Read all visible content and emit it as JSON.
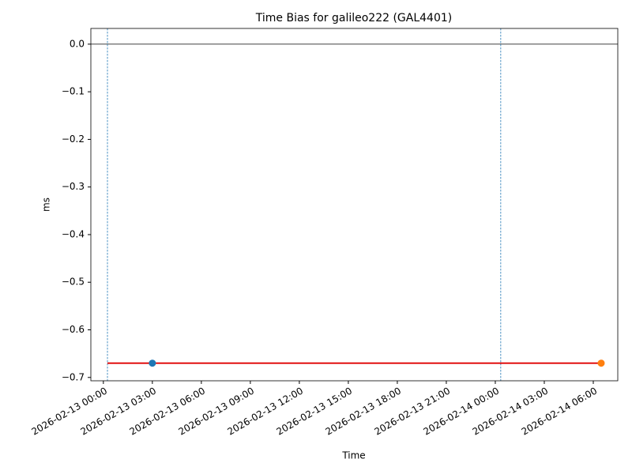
{
  "chart_data": {
    "type": "line",
    "title": "Time Bias for galileo222 (GAL4401)",
    "x_label": "Time",
    "y_label": "ms",
    "series": [
      {
        "color": "#e00000",
        "mode": "lines",
        "x": [
          "2026-02-13 00:15",
          "2026-02-14 06:29"
        ],
        "values": [
          -0.67,
          -0.67
        ]
      },
      {
        "color": "#1f77b4",
        "mode": "markers",
        "x": [
          "2026-02-13 03:00"
        ],
        "values": [
          -0.67
        ]
      },
      {
        "color": "#ff7f0e",
        "mode": "markers",
        "x": [
          "2026-02-14 06:29"
        ],
        "values": [
          -0.67
        ]
      }
    ],
    "vlines": {
      "x": [
        "2026-02-13 00:15",
        "2026-02-14 00:20"
      ],
      "color": "#1f77b4"
    },
    "hline": {
      "y": 0,
      "color": "#000000"
    },
    "xlim": [
      "2026-02-12 23:14",
      "2026-02-14 07:30"
    ],
    "xticks": [
      "2026-02-13 00:00",
      "2026-02-13 03:00",
      "2026-02-13 06:00",
      "2026-02-13 09:00",
      "2026-02-13 12:00",
      "2026-02-13 15:00",
      "2026-02-13 18:00",
      "2026-02-13 21:00",
      "2026-02-14 00:00",
      "2026-02-14 03:00",
      "2026-02-14 06:00"
    ],
    "ylim": [
      -0.707,
      0.033
    ],
    "yticks": [
      {
        "value": 0,
        "label": "0.0"
      },
      {
        "value": -0.1,
        "label": "−0.1"
      },
      {
        "value": -0.2,
        "label": "−0.2"
      },
      {
        "value": -0.3,
        "label": "−0.3"
      },
      {
        "value": -0.4,
        "label": "−0.4"
      },
      {
        "value": -0.5,
        "label": "−0.5"
      },
      {
        "value": -0.6,
        "label": "−0.6"
      },
      {
        "value": -0.7,
        "label": "−0.7"
      }
    ],
    "grid": false
  }
}
